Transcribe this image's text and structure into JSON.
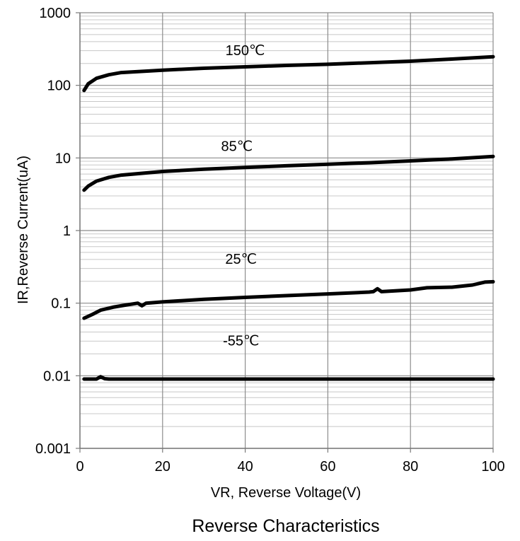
{
  "chart_data": {
    "type": "line",
    "title": "Reverse Characteristics",
    "xlabel": "VR, Reverse Voltage(V)",
    "ylabel": "IR,Reverse Current(uA)",
    "xlim": [
      0,
      100
    ],
    "ylim": [
      0.001,
      1000
    ],
    "yscale": "log",
    "x_ticks": [
      "0",
      "20",
      "40",
      "60",
      "80",
      "100"
    ],
    "y_ticks": [
      "1000",
      "100",
      "10",
      "1",
      "0.1",
      "0.01",
      "0.001"
    ],
    "grid": true,
    "series": [
      {
        "name": "150℃",
        "x": [
          1,
          2,
          4,
          7,
          10,
          20,
          30,
          40,
          50,
          60,
          70,
          80,
          90,
          100
        ],
        "y": [
          85,
          105,
          125,
          140,
          150,
          162,
          172,
          180,
          188,
          195,
          205,
          215,
          230,
          248
        ]
      },
      {
        "name": "85℃",
        "x": [
          1,
          2,
          4,
          7,
          10,
          20,
          30,
          40,
          50,
          60,
          70,
          80,
          90,
          100
        ],
        "y": [
          3.6,
          4.1,
          4.8,
          5.4,
          5.8,
          6.5,
          7.0,
          7.4,
          7.8,
          8.2,
          8.6,
          9.1,
          9.7,
          10.5
        ]
      },
      {
        "name": "25℃",
        "x": [
          1,
          3,
          5,
          8,
          10,
          14,
          15,
          16,
          20,
          30,
          40,
          50,
          60,
          70,
          71,
          72,
          73,
          80,
          84,
          90,
          95,
          98,
          100
        ],
        "y": [
          0.062,
          0.07,
          0.08,
          0.088,
          0.092,
          0.1,
          0.092,
          0.1,
          0.104,
          0.113,
          0.12,
          0.127,
          0.134,
          0.142,
          0.144,
          0.158,
          0.144,
          0.152,
          0.163,
          0.166,
          0.178,
          0.195,
          0.197
        ]
      },
      {
        "name": "-55℃",
        "x": [
          1,
          3,
          4,
          5,
          6,
          7,
          10,
          40,
          70,
          100
        ],
        "y": [
          0.009,
          0.009,
          0.009,
          0.0097,
          0.0091,
          0.009,
          0.009,
          0.009,
          0.009,
          0.009
        ]
      }
    ],
    "annotations": [
      {
        "text": "150℃",
        "x": 40,
        "y": 260
      },
      {
        "text": "85℃",
        "x": 38,
        "y": 12.5
      },
      {
        "text": "25℃",
        "x": 39,
        "y": 0.35
      },
      {
        "text": "-55℃",
        "x": 39,
        "y": 0.026
      }
    ]
  }
}
